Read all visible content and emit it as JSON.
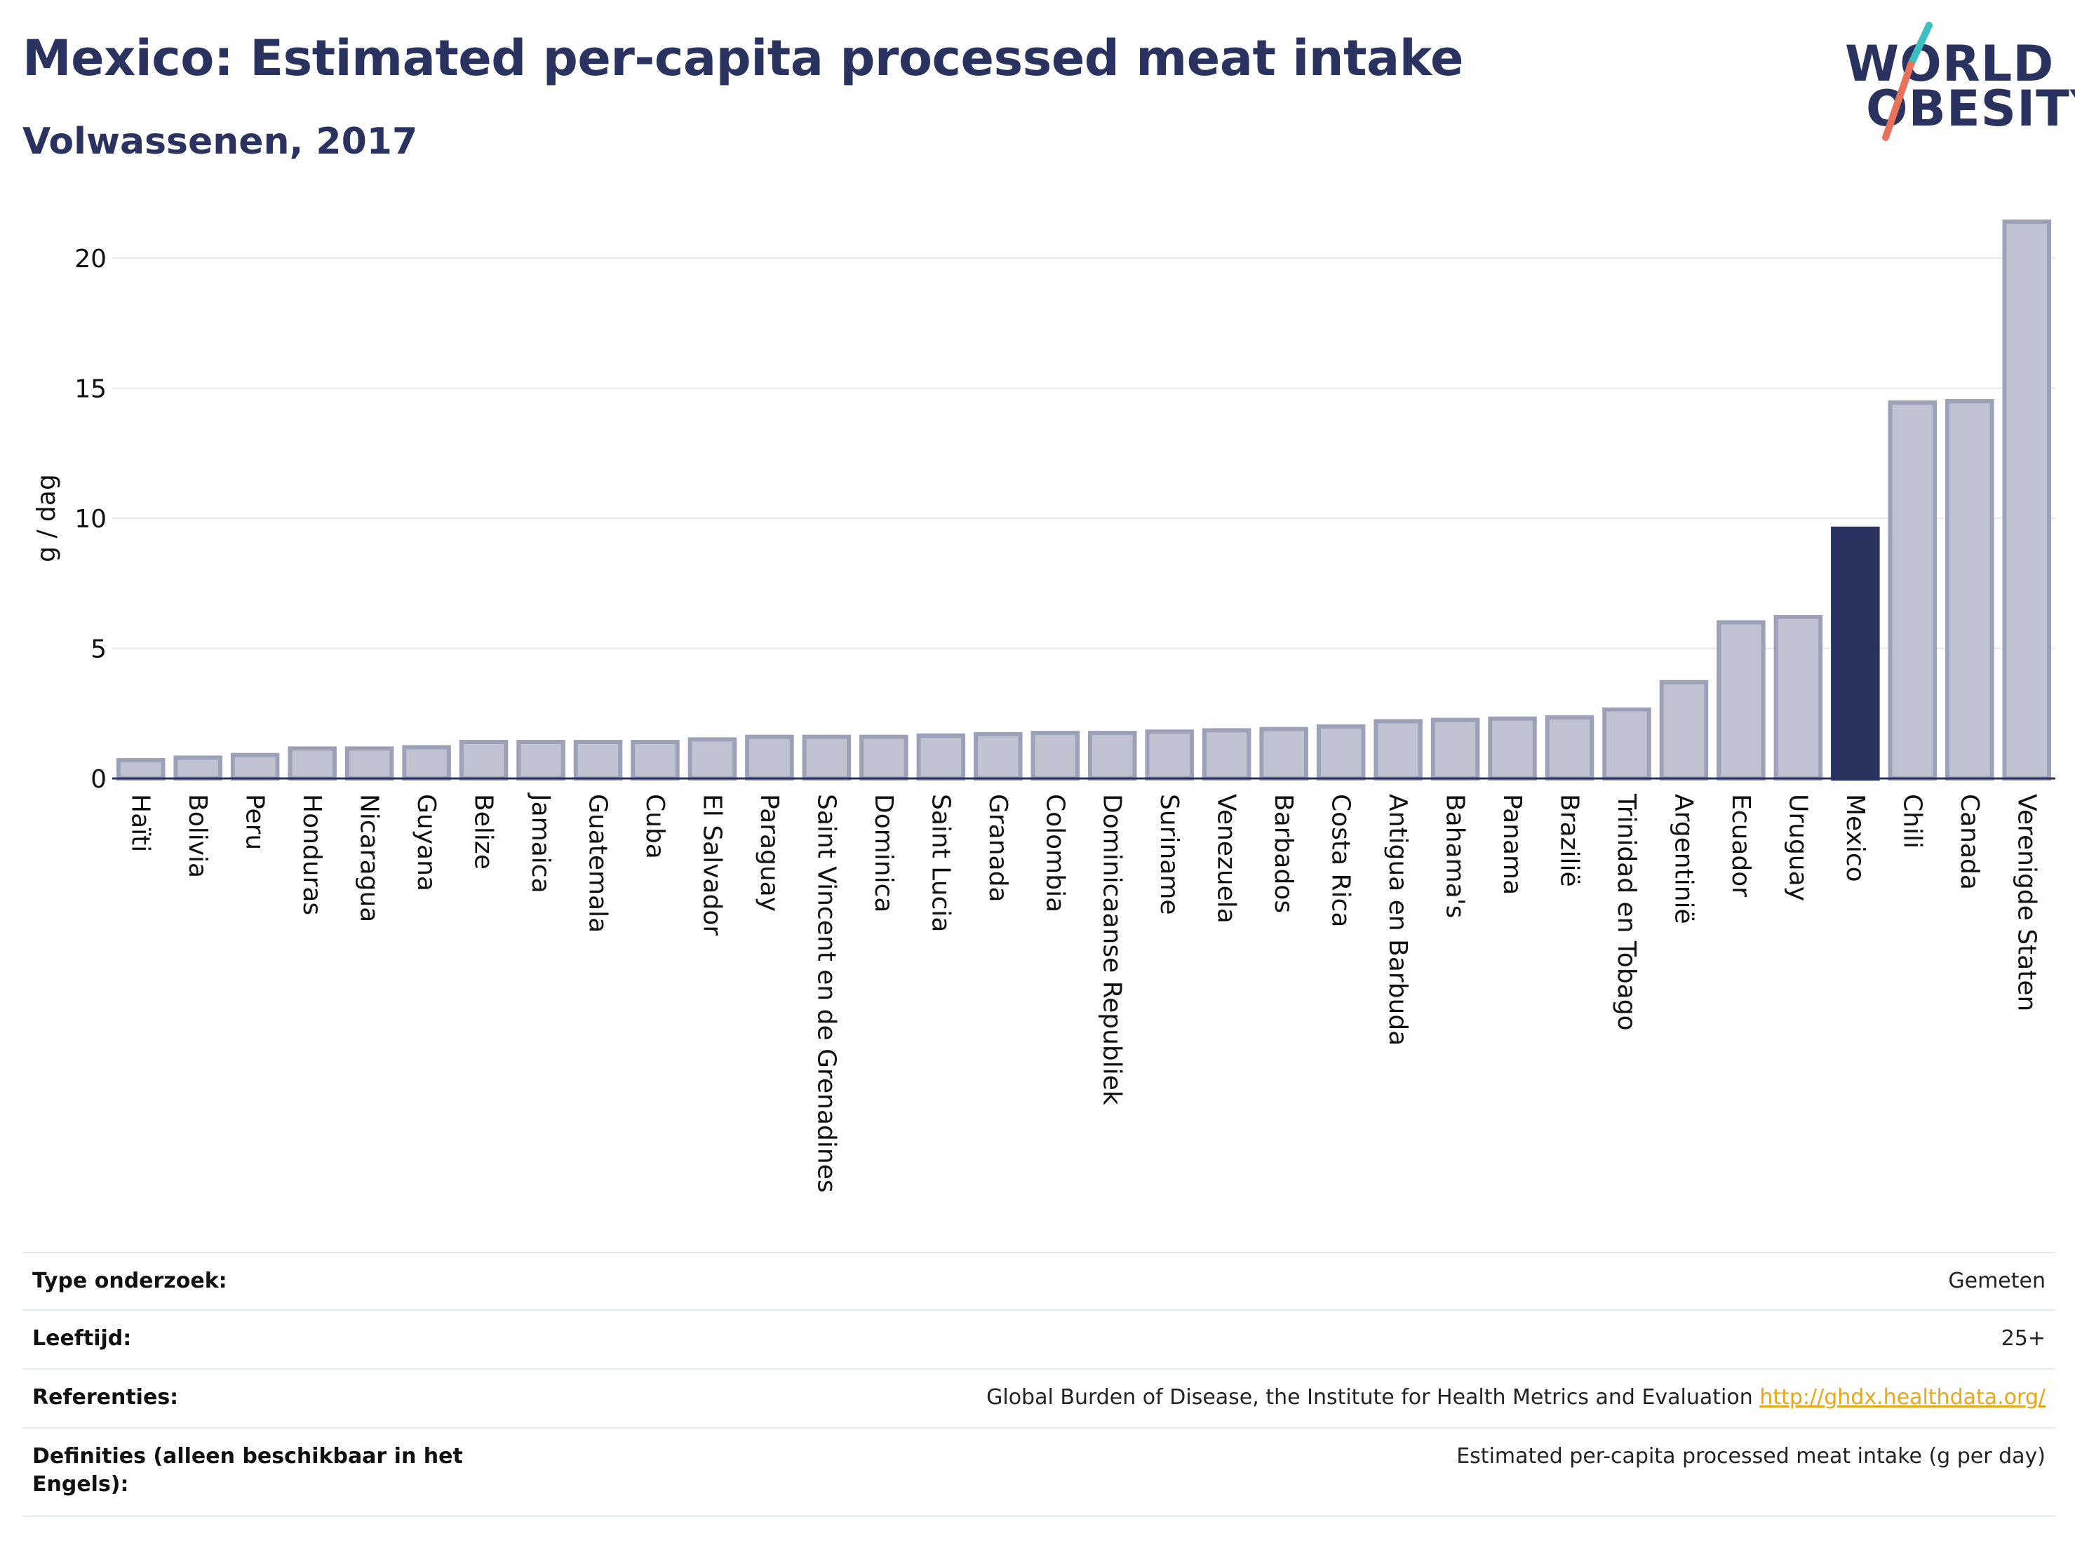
{
  "header": {
    "title": "Mexico: Estimated per-capita processed meat intake",
    "subtitle": "Volwassenen, 2017"
  },
  "logo": {
    "line1": "WORLD",
    "line2": "OBESITY",
    "slash_colors": [
      "#3bbfbf",
      "#e8725c"
    ]
  },
  "chart_data": {
    "type": "bar",
    "ylabel": "g / dag",
    "xlabel": "",
    "ylim": [
      0,
      22
    ],
    "yticks": [
      0,
      5,
      10,
      15,
      20
    ],
    "grid": true,
    "highlight": "Mexico",
    "colors": {
      "bar": "#bfc2d0",
      "bar_edge": "#9da1b8",
      "highlight": "#2a335f",
      "grid": "#e6e9ee",
      "axis": "#2a335f"
    },
    "categories": [
      "Haïti",
      "Bolivia",
      "Peru",
      "Honduras",
      "Nicaragua",
      "Guyana",
      "Belize",
      "Jamaica",
      "Guatemala",
      "Cuba",
      "El Salvador",
      "Paraguay",
      "Saint Vincent en de Grenadines",
      "Dominica",
      "Saint Lucia",
      "Granada",
      "Colombia",
      "Dominicaanse Republiek",
      "Suriname",
      "Venezuela",
      "Barbados",
      "Costa Rica",
      "Antigua en Barbuda",
      "Bahama's",
      "Panama",
      "Brazilië",
      "Trinidad en Tobago",
      "Argentinië",
      "Ecuador",
      "Uruguay",
      "Mexico",
      "Chili",
      "Canada",
      "Verenigde Staten"
    ],
    "values": [
      0.7,
      0.8,
      0.9,
      1.15,
      1.15,
      1.2,
      1.4,
      1.4,
      1.4,
      1.4,
      1.5,
      1.6,
      1.6,
      1.6,
      1.65,
      1.7,
      1.75,
      1.75,
      1.8,
      1.85,
      1.9,
      2.0,
      2.2,
      2.25,
      2.3,
      2.35,
      2.65,
      3.7,
      6.0,
      6.2,
      9.6,
      14.45,
      14.5,
      21.4
    ]
  },
  "info": {
    "rows": [
      {
        "label": "Type onderzoek:",
        "value": "Gemeten"
      },
      {
        "label": "Leeftijd:",
        "value": "25+"
      },
      {
        "label": "Referenties:",
        "value": "Global Burden of Disease, the Institute for Health Metrics and Evaluation",
        "link": "http://ghdx.healthdata.org/"
      },
      {
        "label": "Definities (alleen beschikbaar in het Engels):",
        "value": "Estimated per-capita processed meat intake (g per day)"
      }
    ]
  }
}
